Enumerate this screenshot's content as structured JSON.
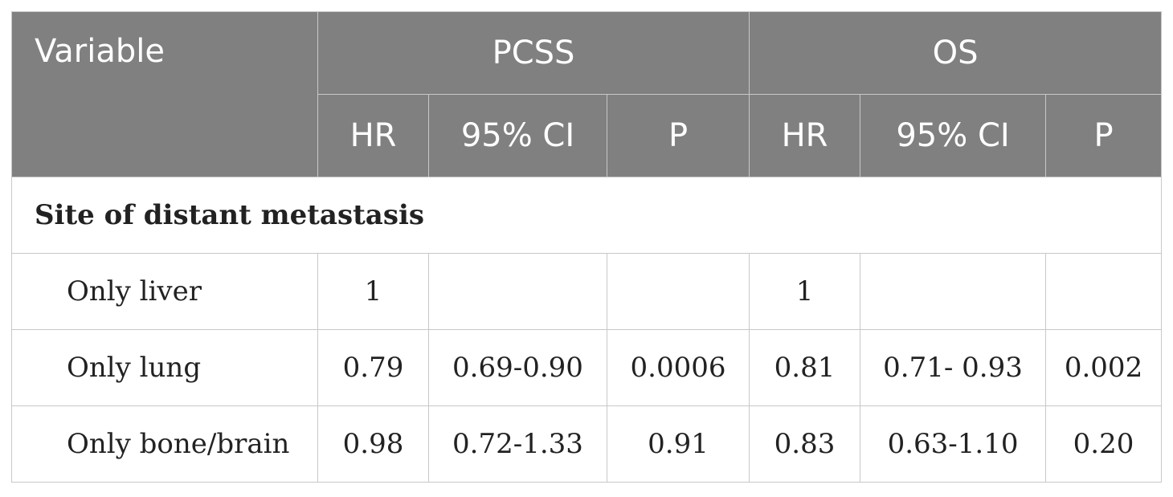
{
  "header": {
    "variable": "Variable",
    "groups": [
      "PCSS",
      "OS"
    ],
    "sub": [
      "HR",
      "95% CI",
      "P",
      "HR",
      "95% CI",
      "P"
    ]
  },
  "section_title": "Site of distant metastasis",
  "rows": [
    {
      "label": "Only liver",
      "cells": [
        "1",
        "",
        "",
        "1",
        "",
        ""
      ]
    },
    {
      "label": "Only lung",
      "cells": [
        "0.79",
        "0.69-0.90",
        "0.0006",
        "0.81",
        "0.71- 0.93",
        "0.002"
      ]
    },
    {
      "label": "Only bone/brain",
      "cells": [
        "0.98",
        "0.72-1.33",
        "0.91",
        "0.83",
        "0.63-1.10",
        "0.20"
      ]
    }
  ],
  "colors": {
    "header_bg": "#808080",
    "header_text": "#ffffff",
    "border": "#c8c8c8"
  }
}
